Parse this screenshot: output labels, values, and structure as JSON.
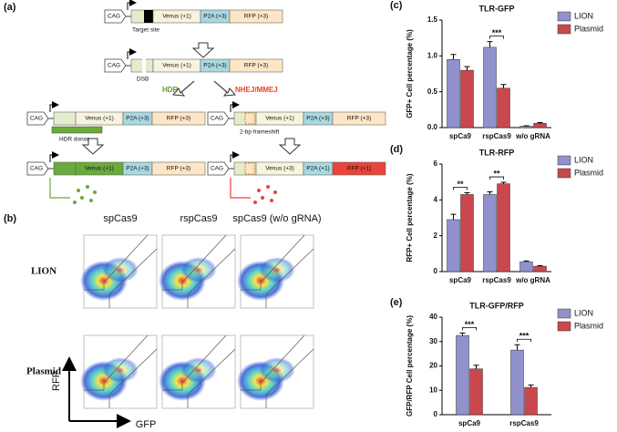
{
  "panel_a": {
    "label": "(a)",
    "constructs": [
      {
        "promoter": "CAG",
        "segments": [
          "Venus (+1)",
          "P2A (+3)",
          "RFP (+3)"
        ],
        "note": "Target site"
      },
      {
        "promoter": "CAG",
        "segments": [
          "Venus (+1)",
          "P2A (+3)",
          "RFP (+3)"
        ],
        "note": "DSB"
      },
      {
        "promoter": "CAG",
        "segments": [
          "Venus (+1)",
          "P2A (+3)",
          "RFP (+3)"
        ],
        "note": "HDR donor"
      },
      {
        "promoter": "CAG",
        "segments": [
          "Venus (+1)",
          "P2A (+3)",
          "RFP (+3)"
        ],
        "note": "2-bp frameshift"
      },
      {
        "promoter": "CAG",
        "segments": [
          "Venus (+1)",
          "P2A (+3)",
          "RFP (+3)"
        ]
      },
      {
        "promoter": "CAG",
        "segments": [
          "Venus (+3)",
          "P2A (+1)",
          "RFP (+1)"
        ]
      }
    ],
    "pathways": [
      "HDR",
      "NHEJ/MMEJ"
    ]
  },
  "panel_b": {
    "label": "(b)",
    "columns": [
      "spCas9",
      "rspCas9",
      "spCas9 (w/o gRNA)"
    ],
    "rows": [
      "LION",
      "Plasmid"
    ],
    "y_axis": "RFP",
    "x_axis": "GFP"
  },
  "chart_data": [
    {
      "type": "bar",
      "panel_label": "(c)",
      "title": "TLR-GFP",
      "y_label": "GFP+ Cell percentage (%)",
      "categories": [
        "spCa9",
        "rspCas9",
        "w/o gRNA"
      ],
      "series": [
        {
          "name": "LION",
          "color": "#9191cc",
          "values": [
            0.95,
            1.12,
            0.02
          ],
          "errors": [
            0.07,
            0.08,
            0.005
          ]
        },
        {
          "name": "Plasmid",
          "color": "#c9474d",
          "values": [
            0.8,
            0.55,
            0.06
          ],
          "errors": [
            0.05,
            0.05,
            0.01
          ]
        }
      ],
      "ylim": [
        0,
        1.5
      ],
      "yticks": [
        {
          "value": 0,
          "label": "0.0"
        },
        {
          "value": 0.5,
          "label": "0.5"
        },
        {
          "value": 1,
          "label": "1.0"
        },
        {
          "value": 1.5,
          "label": "1.5"
        }
      ],
      "annotations": [
        {
          "text": "***",
          "category": "rspCas9"
        }
      ],
      "legend": "upper right"
    },
    {
      "type": "bar",
      "panel_label": "(d)",
      "title": "TLR-RFP",
      "y_label": "RFP+ Cell percentage (%)",
      "categories": [
        "spCa9",
        "rspCas9",
        "w/o gRNA"
      ],
      "series": [
        {
          "name": "LION",
          "color": "#9191cc",
          "values": [
            2.9,
            4.3,
            0.55
          ],
          "errors": [
            0.3,
            0.15,
            0.05
          ]
        },
        {
          "name": "Plasmid",
          "color": "#c9474d",
          "values": [
            4.3,
            4.9,
            0.3
          ],
          "errors": [
            0.1,
            0.08,
            0.03
          ]
        }
      ],
      "ylim": [
        0,
        6
      ],
      "yticks": [
        0,
        2,
        4,
        6
      ],
      "annotations": [
        {
          "text": "**",
          "category": "spCa9"
        },
        {
          "text": "**",
          "category": "rspCas9"
        }
      ],
      "legend": "upper right"
    },
    {
      "type": "bar",
      "panel_label": "(e)",
      "title": "TLR-GFP/RFP",
      "y_label": "GFP/RFP Cell percentage (%)",
      "categories": [
        "spCa9",
        "rspCas9"
      ],
      "series": [
        {
          "name": "LION",
          "color": "#9191cc",
          "values": [
            32.5,
            26.5
          ],
          "errors": [
            1,
            2.2
          ]
        },
        {
          "name": "Plasmid",
          "color": "#c9474d",
          "values": [
            18.8,
            11.2
          ],
          "errors": [
            1.5,
            1
          ]
        }
      ],
      "ylim": [
        0,
        40
      ],
      "yticks": [
        0,
        10,
        20,
        30,
        40
      ],
      "annotations": [
        {
          "text": "***",
          "category": "spCa9"
        },
        {
          "text": "***",
          "category": "rspCas9"
        }
      ],
      "legend": "upper right"
    }
  ]
}
